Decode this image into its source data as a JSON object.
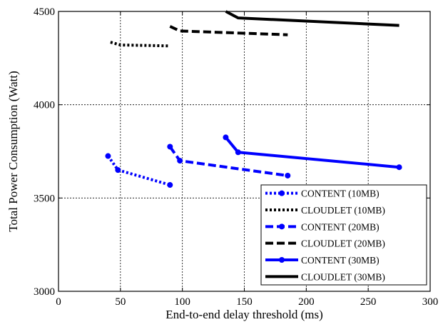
{
  "chart_data": {
    "type": "line",
    "title": "",
    "xlabel": "End-to-end delay threshold (ms)",
    "ylabel": "Total Power Consumption (Watt)",
    "xlim": [
      0,
      300
    ],
    "ylim": [
      3000,
      4500
    ],
    "xticks": [
      0,
      50,
      100,
      150,
      200,
      250,
      300
    ],
    "yticks": [
      3000,
      3500,
      4000,
      4500
    ],
    "grid": true,
    "legend_position": "bottom-right",
    "series": [
      {
        "name": "CONTENT (10MB)",
        "color": "#0000ff",
        "line_style": "dotted",
        "markers": true,
        "x": [
          40,
          48,
          90
        ],
        "y": [
          3725,
          3650,
          3570
        ]
      },
      {
        "name": "CLOUDLET (10MB)",
        "color": "#000000",
        "line_style": "dotted",
        "markers": false,
        "x": [
          42,
          50,
          90
        ],
        "y": [
          4335,
          4320,
          4315
        ]
      },
      {
        "name": "CONTENT (20MB)",
        "color": "#0000ff",
        "line_style": "dashed",
        "markers": true,
        "x": [
          90,
          98,
          185
        ],
        "y": [
          3775,
          3700,
          3620
        ]
      },
      {
        "name": "CLOUDLET (20MB)",
        "color": "#000000",
        "line_style": "dashed",
        "markers": false,
        "x": [
          90,
          98,
          185
        ],
        "y": [
          4420,
          4395,
          4375
        ]
      },
      {
        "name": "CONTENT (30MB)",
        "color": "#0000ff",
        "line_style": "solid",
        "markers": true,
        "x": [
          135,
          145,
          275
        ],
        "y": [
          3825,
          3745,
          3665
        ]
      },
      {
        "name": "CLOUDLET (30MB)",
        "color": "#000000",
        "line_style": "solid",
        "markers": false,
        "x": [
          135,
          145,
          275
        ],
        "y": [
          4500,
          4465,
          4425
        ]
      }
    ]
  }
}
